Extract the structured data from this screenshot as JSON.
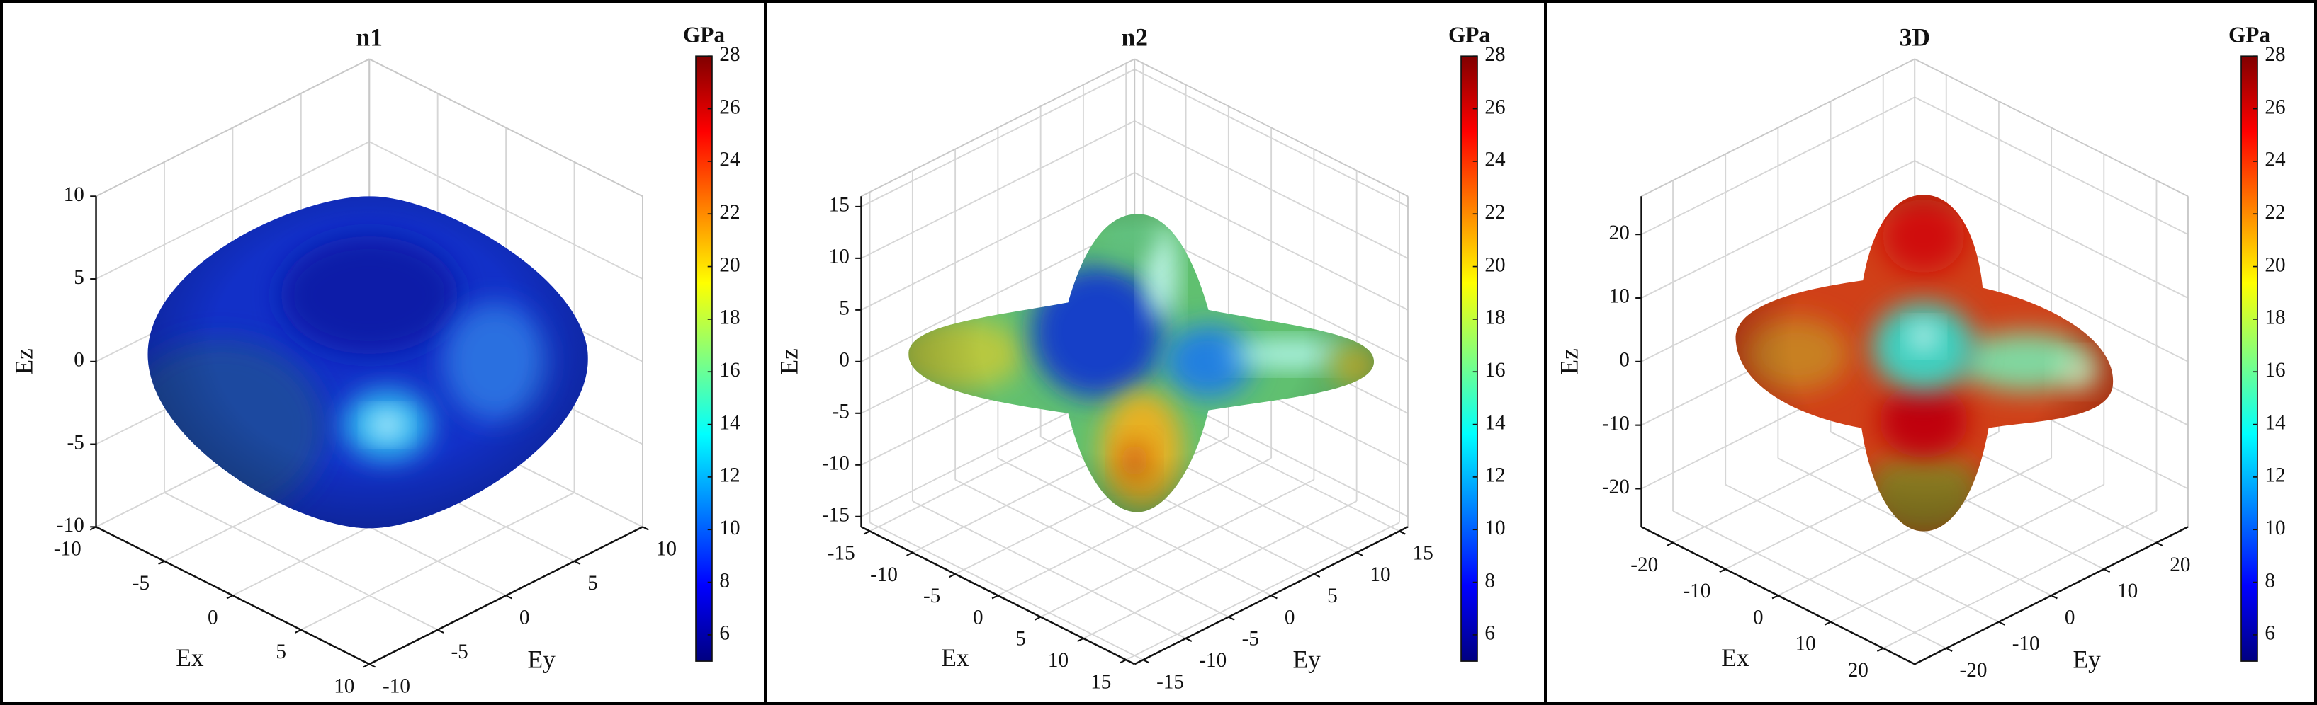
{
  "chart_data": [
    {
      "type": "surface3d",
      "title": "n1",
      "xlabel": "Ex",
      "ylabel": "Ey",
      "zlabel": "Ez",
      "xlim": [
        -10,
        10
      ],
      "ylim": [
        -10,
        10
      ],
      "zlim": [
        -10,
        10
      ],
      "xticks": [
        -10,
        -5,
        0,
        5,
        10
      ],
      "yticks": [
        -10,
        -5,
        0,
        5,
        10
      ],
      "zticks": [
        -10,
        -5,
        0,
        5,
        10
      ],
      "grid": true,
      "colormap": "jet",
      "colorbar": {
        "label": "GPa",
        "clim": [
          5,
          28
        ],
        "ticks": [
          6,
          8,
          10,
          12,
          14,
          16,
          18,
          20,
          22,
          24,
          26,
          28
        ]
      }
    },
    {
      "type": "surface3d",
      "title": "n2",
      "xlabel": "Ex",
      "ylabel": "Ey",
      "zlabel": "Ez",
      "xlim": [
        -16,
        16
      ],
      "ylim": [
        -16,
        16
      ],
      "zlim": [
        -16,
        16
      ],
      "xticks": [
        -15,
        -10,
        -5,
        0,
        5,
        10,
        15
      ],
      "yticks": [
        -15,
        -10,
        -5,
        0,
        5,
        10,
        15
      ],
      "zticks": [
        -15,
        -10,
        -5,
        0,
        5,
        10,
        15
      ],
      "grid": true,
      "colormap": "jet",
      "colorbar": {
        "label": "GPa",
        "clim": [
          5,
          28
        ],
        "ticks": [
          6,
          8,
          10,
          12,
          14,
          16,
          18,
          20,
          22,
          24,
          26,
          28
        ]
      }
    },
    {
      "type": "surface3d",
      "title": "3D",
      "xlabel": "Ex",
      "ylabel": "Ey",
      "zlabel": "Ez",
      "xlim": [
        -26,
        26
      ],
      "ylim": [
        -26,
        26
      ],
      "zlim": [
        -26,
        26
      ],
      "xticks": [
        -20,
        -10,
        0,
        10,
        20
      ],
      "yticks": [
        -20,
        -10,
        0,
        10,
        20
      ],
      "zticks": [
        -20,
        -10,
        0,
        10,
        20
      ],
      "grid": true,
      "colormap": "jet",
      "colorbar": {
        "label": "GPa",
        "clim": [
          5,
          28
        ],
        "ticks": [
          6,
          8,
          10,
          12,
          14,
          16,
          18,
          20,
          22,
          24,
          26,
          28
        ]
      }
    }
  ]
}
